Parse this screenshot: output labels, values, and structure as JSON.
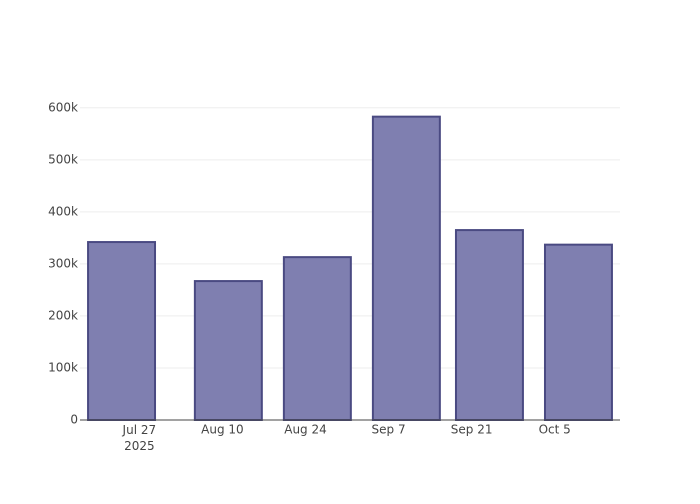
{
  "chart_data": {
    "type": "bar",
    "x": [
      "2025-07-24",
      "2025-08-11",
      "2025-08-26",
      "2025-09-10",
      "2025-09-24",
      "2025-10-09"
    ],
    "values": [
      342000,
      267000,
      313000,
      583000,
      365000,
      337000
    ],
    "color": "#7f7fb0",
    "edge_color": "#4a4a82",
    "xlim": [
      "2025-07-17",
      "2025-10-16"
    ],
    "xticks": [
      {
        "value": "2025-07-27",
        "label": "Jul 27\n2025"
      },
      {
        "value": "2025-08-10",
        "label": "Aug 10"
      },
      {
        "value": "2025-08-24",
        "label": "Aug 24"
      },
      {
        "value": "2025-09-07",
        "label": "Sep 7"
      },
      {
        "value": "2025-09-21",
        "label": "Sep 21"
      },
      {
        "value": "2025-10-05",
        "label": "Oct 5"
      }
    ],
    "ylim": [
      0,
      615000
    ],
    "yticks": [
      0,
      {
        "value": 100000,
        "label": "100k"
      },
      {
        "value": 200000,
        "label": "200k"
      },
      {
        "value": 300000,
        "label": "300k"
      },
      {
        "value": 400000,
        "label": "400k"
      },
      {
        "value": 500000,
        "label": "500k"
      },
      {
        "value": 600000,
        "label": "600k"
      }
    ],
    "grid": true
  }
}
